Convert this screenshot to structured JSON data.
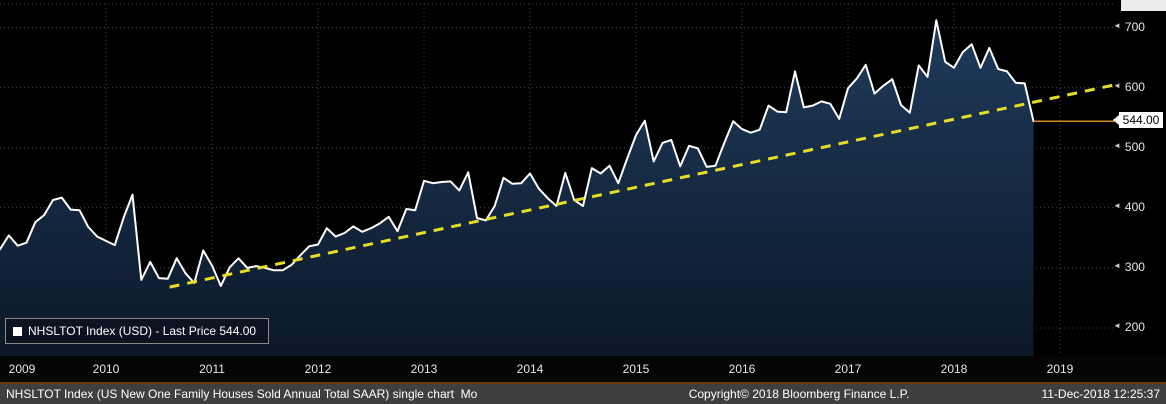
{
  "colors": {
    "background": "#000000",
    "area_fill_top": "#1f3b5c",
    "area_fill_bottom": "#0c1828",
    "price_line": "#ffffff",
    "trend_line": "#e6dd25",
    "last_price_line": "#d08a2e",
    "grid": "#454545",
    "axis_text": "#e6e6e6"
  },
  "chart_data": {
    "type": "area",
    "title": "NHSLTOT Index (USD) - Last Price 544.00",
    "x_start": "2009-01",
    "frequency": "monthly",
    "series": [
      {
        "name": "NHSLTOT Index (USD)",
        "values": [
          331,
          354,
          337,
          342,
          376,
          388,
          413,
          417,
          397,
          396,
          368,
          352,
          345,
          338,
          384,
          422,
          280,
          310,
          283,
          282,
          316,
          291,
          275,
          329,
          304,
          270,
          301,
          316,
          300,
          303,
          300,
          296,
          296,
          305,
          321,
          336,
          339,
          366,
          352,
          358,
          369,
          360,
          366,
          374,
          385,
          361,
          398,
          396,
          445,
          441,
          443,
          444,
          429,
          459,
          383,
          379,
          403,
          450,
          440,
          441,
          457,
          432,
          416,
          403,
          458,
          413,
          403,
          466,
          457,
          470,
          441,
          482,
          521,
          545,
          477,
          508,
          513,
          469,
          503,
          499,
          468,
          470,
          508,
          544,
          531,
          525,
          530,
          570,
          560,
          559,
          627,
          567,
          570,
          577,
          573,
          548,
          599,
          615,
          638,
          590,
          603,
          614,
          571,
          558,
          637,
          618,
          712,
          643,
          633,
          659,
          672,
          633,
          666,
          631,
          627,
          608,
          607,
          544
        ]
      }
    ],
    "yticks": [
      200,
      300,
      400,
      500,
      600,
      700
    ],
    "ylim": [
      150,
      745
    ],
    "x_tick_years": [
      "2009",
      "2010",
      "2011",
      "2012",
      "2013",
      "2014",
      "2015",
      "2016",
      "2017",
      "2018",
      "2019"
    ],
    "last_price": 544.0,
    "trend_line": {
      "style": "dashed",
      "start_year": 2010.6,
      "start_value": 268,
      "end_year": 2019.5,
      "end_value": 604
    },
    "grid": "dotted",
    "legend_position": "bottom-left"
  },
  "legend": {
    "label": "NHSLTOT Index (USD) - Last Price 544.00"
  },
  "y_axis": {
    "last_price_label": "544.00"
  },
  "status_bar": {
    "left": "NHSLTOT Index (US New One Family Houses Sold Annual Total SAAR) single chart  Mo",
    "copyright": "Copyright© 2018 Bloomberg Finance L.P.",
    "timestamp": "11-Dec-2018 12:25:37"
  }
}
